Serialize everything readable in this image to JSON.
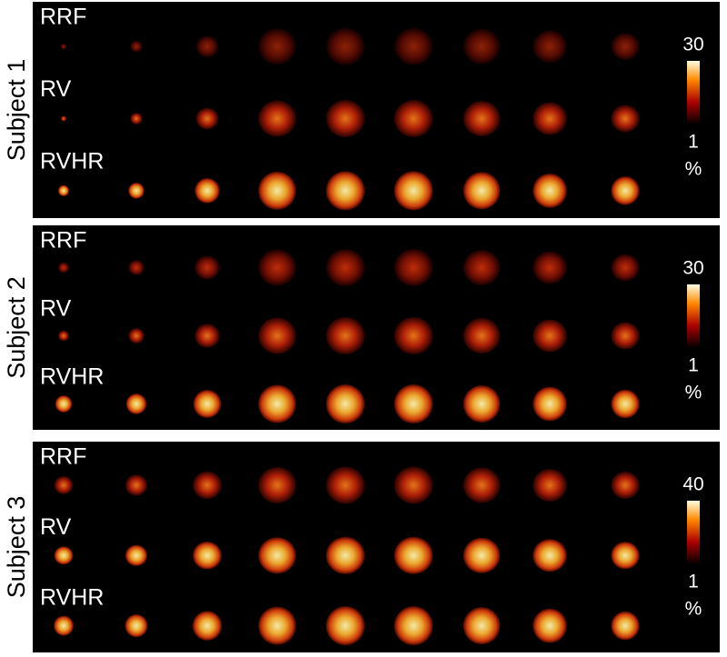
{
  "panels": [
    {
      "subject": "Subject 1",
      "rows": [
        "RRF",
        "RV",
        "RVHR"
      ],
      "colorbar": {
        "max": 30,
        "min": 1,
        "unit": "%"
      }
    },
    {
      "subject": "Subject 2",
      "rows": [
        "RRF",
        "RV",
        "RVHR"
      ],
      "colorbar": {
        "max": 30,
        "min": 1,
        "unit": "%"
      }
    },
    {
      "subject": "Subject 3",
      "rows": [
        "RRF",
        "RV",
        "RVHR"
      ],
      "colorbar": {
        "max": 40,
        "min": 1,
        "unit": "%"
      }
    }
  ]
}
